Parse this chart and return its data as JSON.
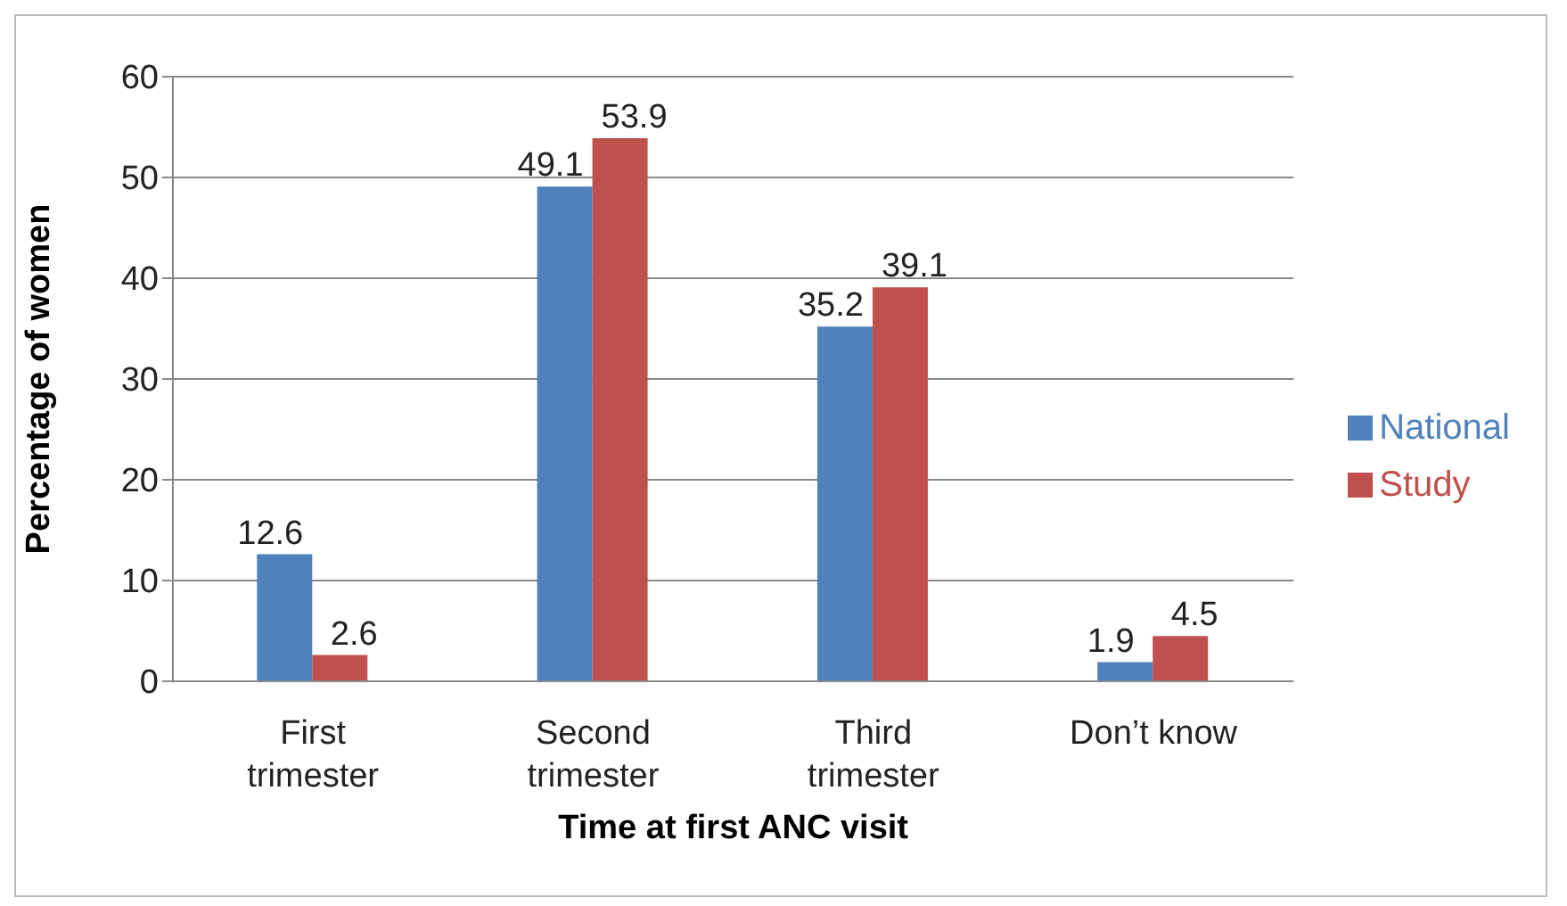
{
  "chart_data": {
    "type": "bar",
    "categories": [
      "First trimester",
      "Second trimester",
      "Third trimester",
      "Don’t know"
    ],
    "series": [
      {
        "name": "National",
        "color": "#4f81bd",
        "values": [
          12.6,
          49.1,
          35.2,
          1.9
        ]
      },
      {
        "name": "Study",
        "color": "#c0504d",
        "values": [
          2.6,
          53.9,
          39.1,
          4.5
        ]
      }
    ],
    "xlabel": "Time at first ANC visit",
    "ylabel": "Percentage of women",
    "ylim": [
      0,
      60
    ],
    "yticks": [
      0,
      10,
      20,
      30,
      40,
      50,
      60
    ],
    "grid": "y",
    "legend": "right",
    "data_labels": true
  }
}
